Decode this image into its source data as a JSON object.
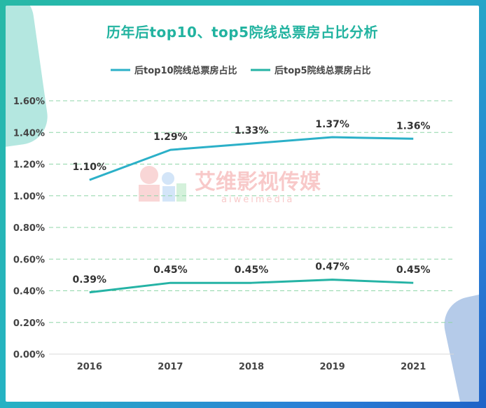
{
  "chart_data": {
    "type": "line",
    "title": "历年后top10、top5院线总票房占比分析",
    "categories": [
      "2016",
      "2017",
      "2018",
      "2019",
      "2021"
    ],
    "series": [
      {
        "name": "后top10院线总票房占比",
        "values": [
          1.1,
          1.29,
          1.33,
          1.37,
          1.36
        ],
        "labels": [
          "1.10%",
          "1.29%",
          "1.33%",
          "1.37%",
          "1.36%"
        ],
        "color": "#2bb0c8"
      },
      {
        "name": "后top5院线总票房占比",
        "values": [
          0.39,
          0.45,
          0.45,
          0.47,
          0.45
        ],
        "labels": [
          "0.39%",
          "0.45%",
          "0.45%",
          "0.47%",
          "0.45%"
        ],
        "color": "#25b3a5"
      }
    ],
    "yticks": [
      "0.00%",
      "0.20%",
      "0.40%",
      "0.60%",
      "0.80%",
      "1.00%",
      "1.20%",
      "1.40%",
      "1.60%"
    ],
    "ylim": [
      0,
      1.6
    ],
    "grid": true,
    "legend_position": "top-center"
  },
  "watermark": {
    "cn": "艾维影视传媒",
    "en": "aiweimedia"
  },
  "colors": {
    "accent": "#22b3a0",
    "grid": "#8fd6a8",
    "text": "#444444"
  }
}
